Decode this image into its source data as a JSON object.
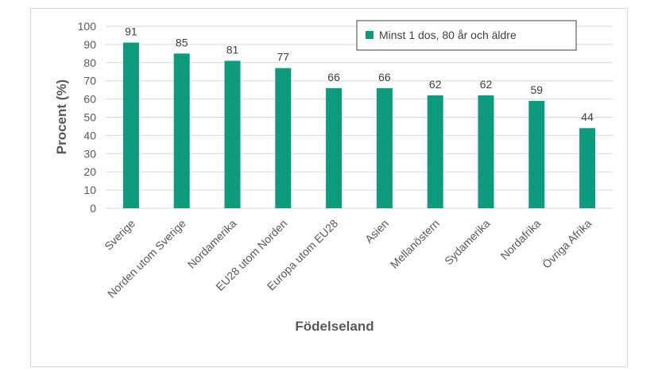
{
  "chart_data": {
    "type": "bar",
    "categories": [
      "Sverige",
      "Norden utom Sverige",
      "Nordamerika",
      "EU28 utom Norden",
      "Europa utom EU28",
      "Asien",
      "Mellanöstern",
      "Sydamerika",
      "Nordafrika",
      "Övriga Afrika"
    ],
    "series": [
      {
        "name": "Minst 1 dos, 80 år och äldre",
        "values": [
          91,
          85,
          81,
          77,
          66,
          66,
          62,
          62,
          59,
          44
        ]
      }
    ],
    "xlabel": "Födelseland",
    "ylabel": "Procent (%)",
    "ylim": [
      0,
      100
    ],
    "yticks": [
      0,
      10,
      20,
      30,
      40,
      50,
      60,
      70,
      80,
      90,
      100
    ],
    "grid": true,
    "legend_position": "top-right",
    "colors": {
      "bar": "#0e9a7c",
      "grid": "#d9d9d9",
      "text": "#595959"
    }
  }
}
